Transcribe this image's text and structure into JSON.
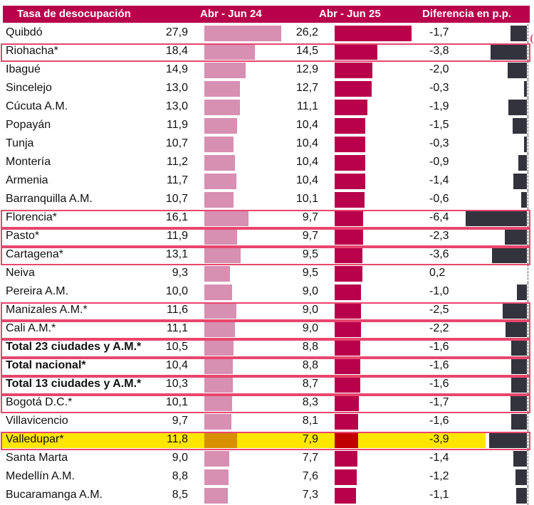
{
  "header": {
    "city": "Tasa de desocupación",
    "period1": "Abr - Jun 24",
    "period2": "Abr - Jun 25",
    "diff": "Diferencia en p.p."
  },
  "colors": {
    "header_bg": "#b8004b",
    "bar_period1": "#d78fb2",
    "bar_period2": "#b8004b",
    "bar_diff": "#33333d",
    "outline": "#e8466e",
    "highlight": "#ffe600",
    "highlight_bar1": "#d99000",
    "highlight_bar2": "#c00000"
  },
  "chart_data": {
    "type": "table",
    "title": "Tasa de desocupación",
    "columns": [
      "Tasa de desocupación",
      "Abr - Jun 24",
      "Abr - Jun 25",
      "Diferencia en p.p."
    ],
    "rows": [
      {
        "city": "Quibdó",
        "v1": "27,9",
        "v2": "26,2",
        "diff": "-1,7",
        "bold": false,
        "outlined": false,
        "highlighted": false
      },
      {
        "city": "Riohacha*",
        "v1": "18,4",
        "v2": "14,5",
        "diff": "-3,8",
        "bold": false,
        "outlined": true,
        "highlighted": false
      },
      {
        "city": "Ibagué",
        "v1": "14,9",
        "v2": "12,9",
        "diff": "-2,0",
        "bold": false,
        "outlined": false,
        "highlighted": false
      },
      {
        "city": "Sincelejo",
        "v1": "13,0",
        "v2": "12,7",
        "diff": "-0,3",
        "bold": false,
        "outlined": false,
        "highlighted": false
      },
      {
        "city": "Cúcuta A.M.",
        "v1": "13,0",
        "v2": "11,1",
        "diff": "-1,9",
        "bold": false,
        "outlined": false,
        "highlighted": false
      },
      {
        "city": "Popayán",
        "v1": "11,9",
        "v2": "10,4",
        "diff": "-1,5",
        "bold": false,
        "outlined": false,
        "highlighted": false
      },
      {
        "city": "Tunja",
        "v1": "10,7",
        "v2": "10,4",
        "diff": "-0,3",
        "bold": false,
        "outlined": false,
        "highlighted": false
      },
      {
        "city": "Montería",
        "v1": "11,2",
        "v2": "10,4",
        "diff": "-0,9",
        "bold": false,
        "outlined": false,
        "highlighted": false
      },
      {
        "city": "Armenia",
        "v1": "11,7",
        "v2": "10,4",
        "diff": "-1,4",
        "bold": false,
        "outlined": false,
        "highlighted": false
      },
      {
        "city": "Barranquilla A.M.",
        "v1": "10,7",
        "v2": "10,1",
        "diff": "-0,6",
        "bold": false,
        "outlined": false,
        "highlighted": false
      },
      {
        "city": "Florencia*",
        "v1": "16,1",
        "v2": "9,7",
        "diff": "-6,4",
        "bold": false,
        "outlined": true,
        "highlighted": false
      },
      {
        "city": "Pasto*",
        "v1": "11,9",
        "v2": "9,7",
        "diff": "-2,3",
        "bold": false,
        "outlined": true,
        "highlighted": false
      },
      {
        "city": "Cartagena*",
        "v1": "13,1",
        "v2": "9,5",
        "diff": "-3,6",
        "bold": false,
        "outlined": true,
        "highlighted": false
      },
      {
        "city": "Neiva",
        "v1": "9,3",
        "v2": "9,5",
        "diff": "0,2",
        "bold": false,
        "outlined": false,
        "highlighted": false
      },
      {
        "city": "Pereira A.M.",
        "v1": "10,0",
        "v2": "9,0",
        "diff": "-1,0",
        "bold": false,
        "outlined": false,
        "highlighted": false
      },
      {
        "city": "Manizales A.M.*",
        "v1": "11,6",
        "v2": "9,0",
        "diff": "-2,5",
        "bold": false,
        "outlined": true,
        "highlighted": false
      },
      {
        "city": "Cali A.M.*",
        "v1": "11,1",
        "v2": "9,0",
        "diff": "-2,2",
        "bold": false,
        "outlined": true,
        "highlighted": false
      },
      {
        "city": "Total 23 ciudades y A.M.*",
        "v1": "10,5",
        "v2": "8,8",
        "diff": "-1,6",
        "bold": true,
        "outlined": true,
        "highlighted": false
      },
      {
        "city": "Total nacional*",
        "v1": "10,4",
        "v2": "8,8",
        "diff": "-1,6",
        "bold": true,
        "outlined": true,
        "highlighted": false
      },
      {
        "city": "Total 13 ciudades y A.M.*",
        "v1": "10,3",
        "v2": "8,7",
        "diff": "-1,6",
        "bold": true,
        "outlined": true,
        "highlighted": false
      },
      {
        "city": "Bogotá D.C.*",
        "v1": "10,1",
        "v2": "8,3",
        "diff": "-1,7",
        "bold": false,
        "outlined": true,
        "highlighted": false
      },
      {
        "city": "Villavicencio",
        "v1": "9,7",
        "v2": "8,1",
        "diff": "-1,6",
        "bold": false,
        "outlined": false,
        "highlighted": false
      },
      {
        "city": "Valledupar*",
        "v1": "11,8",
        "v2": "7,9",
        "diff": "-3,9",
        "bold": false,
        "outlined": true,
        "highlighted": true
      },
      {
        "city": "Santa Marta",
        "v1": "9,0",
        "v2": "7,7",
        "diff": "-1,4",
        "bold": false,
        "outlined": false,
        "highlighted": false
      },
      {
        "city": "Medellín A.M.",
        "v1": "8,8",
        "v2": "7,6",
        "diff": "-1,2",
        "bold": false,
        "outlined": false,
        "highlighted": false
      },
      {
        "city": "Bucaramanga A.M.",
        "v1": "8,5",
        "v2": "7,3",
        "diff": "-1,1",
        "bold": false,
        "outlined": false,
        "highlighted": false
      }
    ]
  }
}
